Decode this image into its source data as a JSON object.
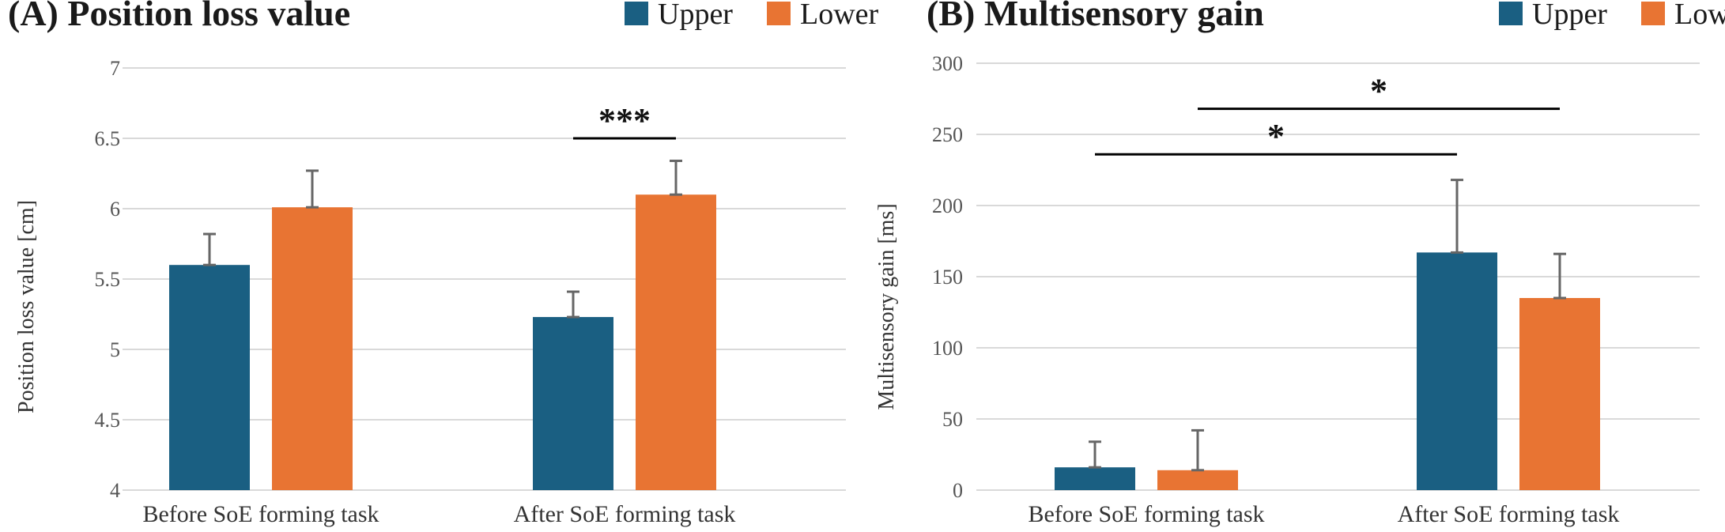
{
  "colors": {
    "upper": "#1a5f82",
    "lower": "#e87433",
    "error": "#666666",
    "grid": "#d9d9d9",
    "text": "#1a1a1a"
  },
  "chart_data": [
    {
      "type": "bar",
      "title": "(A) Position loss value",
      "ylabel": "Position loss value [cm]",
      "xlabel": "",
      "categories": [
        "Before SoE forming task",
        "After SoE forming task"
      ],
      "series": [
        {
          "name": "Upper",
          "values": [
            5.6,
            5.23
          ],
          "errors": [
            0.22,
            0.18
          ]
        },
        {
          "name": "Lower",
          "values": [
            6.01,
            6.1
          ],
          "errors": [
            0.26,
            0.24
          ]
        }
      ],
      "ylim": [
        4,
        7
      ],
      "yticks": [
        "4",
        "4.5",
        "5",
        "5.5",
        "6",
        "6.5",
        "7"
      ],
      "grid": true,
      "legend": "top-right",
      "significance": [
        {
          "label": "***",
          "from": {
            "category": 1,
            "series": 0
          },
          "to": {
            "category": 1,
            "series": 1
          },
          "y": 6.5
        }
      ]
    },
    {
      "type": "bar",
      "title": "(B) Multisensory gain",
      "ylabel": "Multisensory gain [ms]",
      "xlabel": "",
      "categories": [
        "Before SoE forming task",
        "After SoE forming task"
      ],
      "series": [
        {
          "name": "Upper",
          "values": [
            16,
            167
          ],
          "errors": [
            18,
            51
          ]
        },
        {
          "name": "Lower",
          "values": [
            14,
            135
          ],
          "errors": [
            28,
            31
          ]
        }
      ],
      "ylim": [
        0,
        300
      ],
      "yticks": [
        "0",
        "50",
        "100",
        "150",
        "200",
        "250",
        "300"
      ],
      "grid": true,
      "legend": "top-right",
      "significance": [
        {
          "label": "*",
          "from": {
            "category": 0,
            "series": 1
          },
          "to": {
            "category": 1,
            "series": 1
          },
          "y": 268
        },
        {
          "label": "*",
          "from": {
            "category": 0,
            "series": 0
          },
          "to": {
            "category": 1,
            "series": 0
          },
          "y": 236
        }
      ]
    }
  ]
}
